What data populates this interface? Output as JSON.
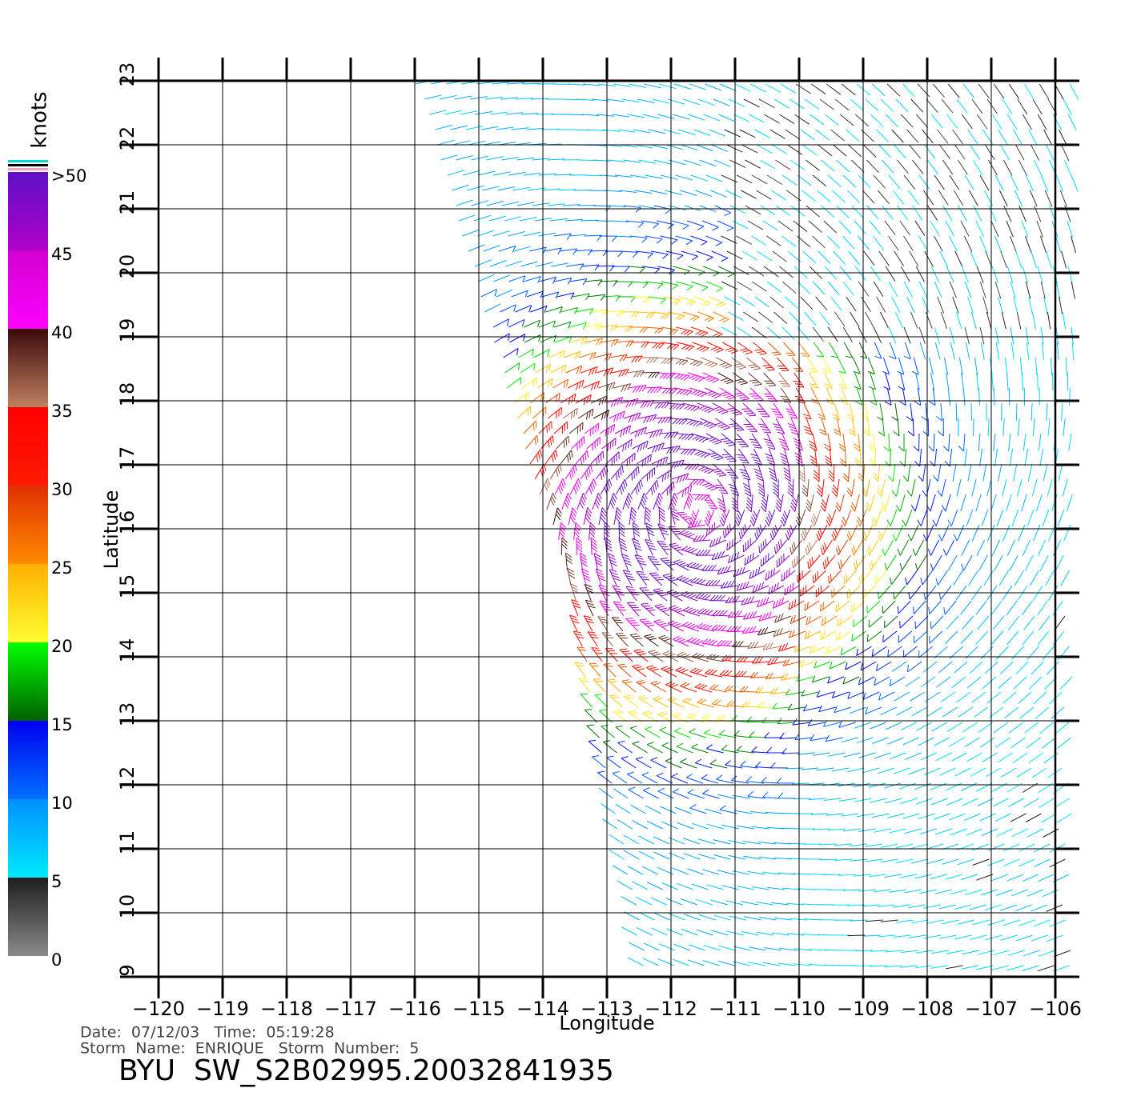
{
  "map": {
    "title": "BYU  SW_S2B02995.20032841935",
    "info": [
      "Date:  07/12/03   Time:  05:19:28",
      "Storm  Name:  ENRIQUE   Storm  Number:  5"
    ],
    "x_label": "Longitude",
    "y_label": "Latitude",
    "xlim": [
      -120,
      -106
    ],
    "ylim": [
      9,
      23
    ],
    "xticks": [
      {
        "value": -120,
        "label": "−120"
      },
      {
        "value": -119,
        "label": "−119"
      },
      {
        "value": -118,
        "label": "−118"
      },
      {
        "value": -117,
        "label": "−117"
      },
      {
        "value": -116,
        "label": "−116"
      },
      {
        "value": -115,
        "label": "−115"
      },
      {
        "value": -114,
        "label": "−114"
      },
      {
        "value": -113,
        "label": "−113"
      },
      {
        "value": -112,
        "label": "−112"
      },
      {
        "value": -111,
        "label": "−111"
      },
      {
        "value": -110,
        "label": "−110"
      },
      {
        "value": -109,
        "label": "−109"
      },
      {
        "value": -108,
        "label": "−108"
      },
      {
        "value": -107,
        "label": "−107"
      },
      {
        "value": -106,
        "label": "−106"
      }
    ],
    "yticks": [
      9,
      10,
      11,
      12,
      13,
      14,
      15,
      16,
      17,
      18,
      19,
      20,
      21,
      22,
      23
    ],
    "colorbar": {
      "unit": "knots",
      "range": [
        0,
        50
      ],
      "ticks": [
        0,
        5,
        10,
        15,
        20,
        25,
        30,
        35,
        40,
        45,
        {
          "value": 50,
          "label": ">50"
        }
      ],
      "segments": [
        {
          "from": 0,
          "to": 5,
          "colors": [
            "#8a8a8a",
            "#1e1e1e"
          ]
        },
        {
          "from": 5,
          "to": 10,
          "colors": [
            "#00eaff",
            "#0090ff"
          ]
        },
        {
          "from": 10,
          "to": 15,
          "colors": [
            "#0070ff",
            "#0000f0"
          ]
        },
        {
          "from": 15,
          "to": 20,
          "colors": [
            "#006000",
            "#00ff00"
          ]
        },
        {
          "from": 20,
          "to": 25,
          "colors": [
            "#ffff30",
            "#ffb000"
          ]
        },
        {
          "from": 25,
          "to": 30,
          "colors": [
            "#ff8a00",
            "#e03000"
          ]
        },
        {
          "from": 30,
          "to": 35,
          "colors": [
            "#ff1a00",
            "#ff0000"
          ]
        },
        {
          "from": 35,
          "to": 40,
          "colors": [
            "#c08060",
            "#3a0a0a"
          ]
        },
        {
          "from": 40,
          "to": 45,
          "colors": [
            "#ff00ff",
            "#d000d0"
          ]
        },
        {
          "from": 45,
          "to": 50,
          "colors": [
            "#b000c8",
            "#6010c8"
          ]
        }
      ]
    }
  }
}
